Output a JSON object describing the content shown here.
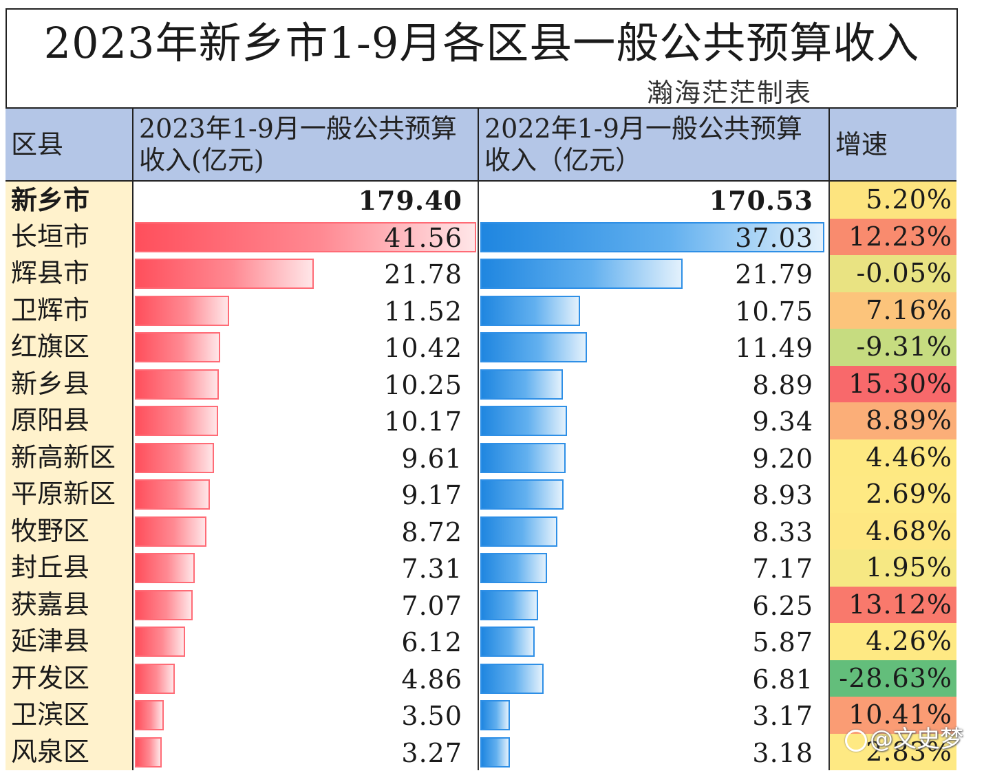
{
  "title": "2023年新乡市1-9月各区县一般公共预算收入",
  "credit": "瀚海茫茫制表",
  "headers": {
    "district": "区县",
    "col_2023": "2023年1-9月一般公共预算收入(亿元)",
    "col_2022": "2022年1-9月一般公共预算收入（亿元）",
    "growth": "增速"
  },
  "colors": {
    "bar_2023": "#ff4f5c",
    "bar_2022": "#1f86e0",
    "header_bg": "#b4c6e7",
    "name_bg": "#fff2cc"
  },
  "chart_data": {
    "type": "table",
    "title": "2023年新乡市1-9月各区县一般公共预算收入",
    "columns": [
      "区县",
      "2023年1-9月一般公共预算收入(亿元)",
      "2022年1-9月一般公共预算收入（亿元）",
      "增速"
    ],
    "rows": [
      {
        "name": "新乡市",
        "v2023": "179.40",
        "v2022": "170.53",
        "growth": "5.20%",
        "growth_color": "#fde47f",
        "total": true
      },
      {
        "name": "长垣市",
        "v2023": "41.56",
        "v2022": "37.03",
        "growth": "12.23%",
        "growth_color": "#f98b6e"
      },
      {
        "name": "辉县市",
        "v2023": "21.78",
        "v2022": "21.79",
        "growth": "-0.05%",
        "growth_color": "#e9e382"
      },
      {
        "name": "卫辉市",
        "v2023": "11.52",
        "v2022": "10.75",
        "growth": "7.16%",
        "growth_color": "#fcc47b"
      },
      {
        "name": "红旗区",
        "v2023": "10.42",
        "v2022": "11.49",
        "growth": "-9.31%",
        "growth_color": "#c6dc80"
      },
      {
        "name": "新乡县",
        "v2023": "10.25",
        "v2022": "8.89",
        "growth": "15.30%",
        "growth_color": "#f8696b"
      },
      {
        "name": "原阳县",
        "v2023": "10.17",
        "v2022": "9.34",
        "growth": "8.89%",
        "growth_color": "#fbae78"
      },
      {
        "name": "新高新区",
        "v2023": "9.61",
        "v2022": "9.20",
        "growth": "4.46%",
        "growth_color": "#fee982"
      },
      {
        "name": "平原新区",
        "v2023": "9.17",
        "v2022": "8.93",
        "growth": "2.69%",
        "growth_color": "#fee983"
      },
      {
        "name": "牧野区",
        "v2023": "8.72",
        "v2022": "8.33",
        "growth": "4.68%",
        "growth_color": "#fee782"
      },
      {
        "name": "封丘县",
        "v2023": "7.31",
        "v2022": "7.17",
        "growth": "1.95%",
        "growth_color": "#f6e883"
      },
      {
        "name": "获嘉县",
        "v2023": "7.07",
        "v2022": "6.25",
        "growth": "13.12%",
        "growth_color": "#f9796c"
      },
      {
        "name": "延津县",
        "v2023": "6.12",
        "v2022": "5.87",
        "growth": "4.26%",
        "growth_color": "#fee983"
      },
      {
        "name": "开发区",
        "v2023": "4.86",
        "v2022": "6.81",
        "growth": "-28.63%",
        "growth_color": "#63be7b"
      },
      {
        "name": "卫滨区",
        "v2023": "3.50",
        "v2022": "3.17",
        "growth": "10.41%",
        "growth_color": "#fa9c74"
      },
      {
        "name": "风泉区",
        "v2023": "3.27",
        "v2022": "3.18",
        "growth": "2.83%",
        "growth_color": "#fee983"
      }
    ]
  },
  "watermark": "@文史梦"
}
